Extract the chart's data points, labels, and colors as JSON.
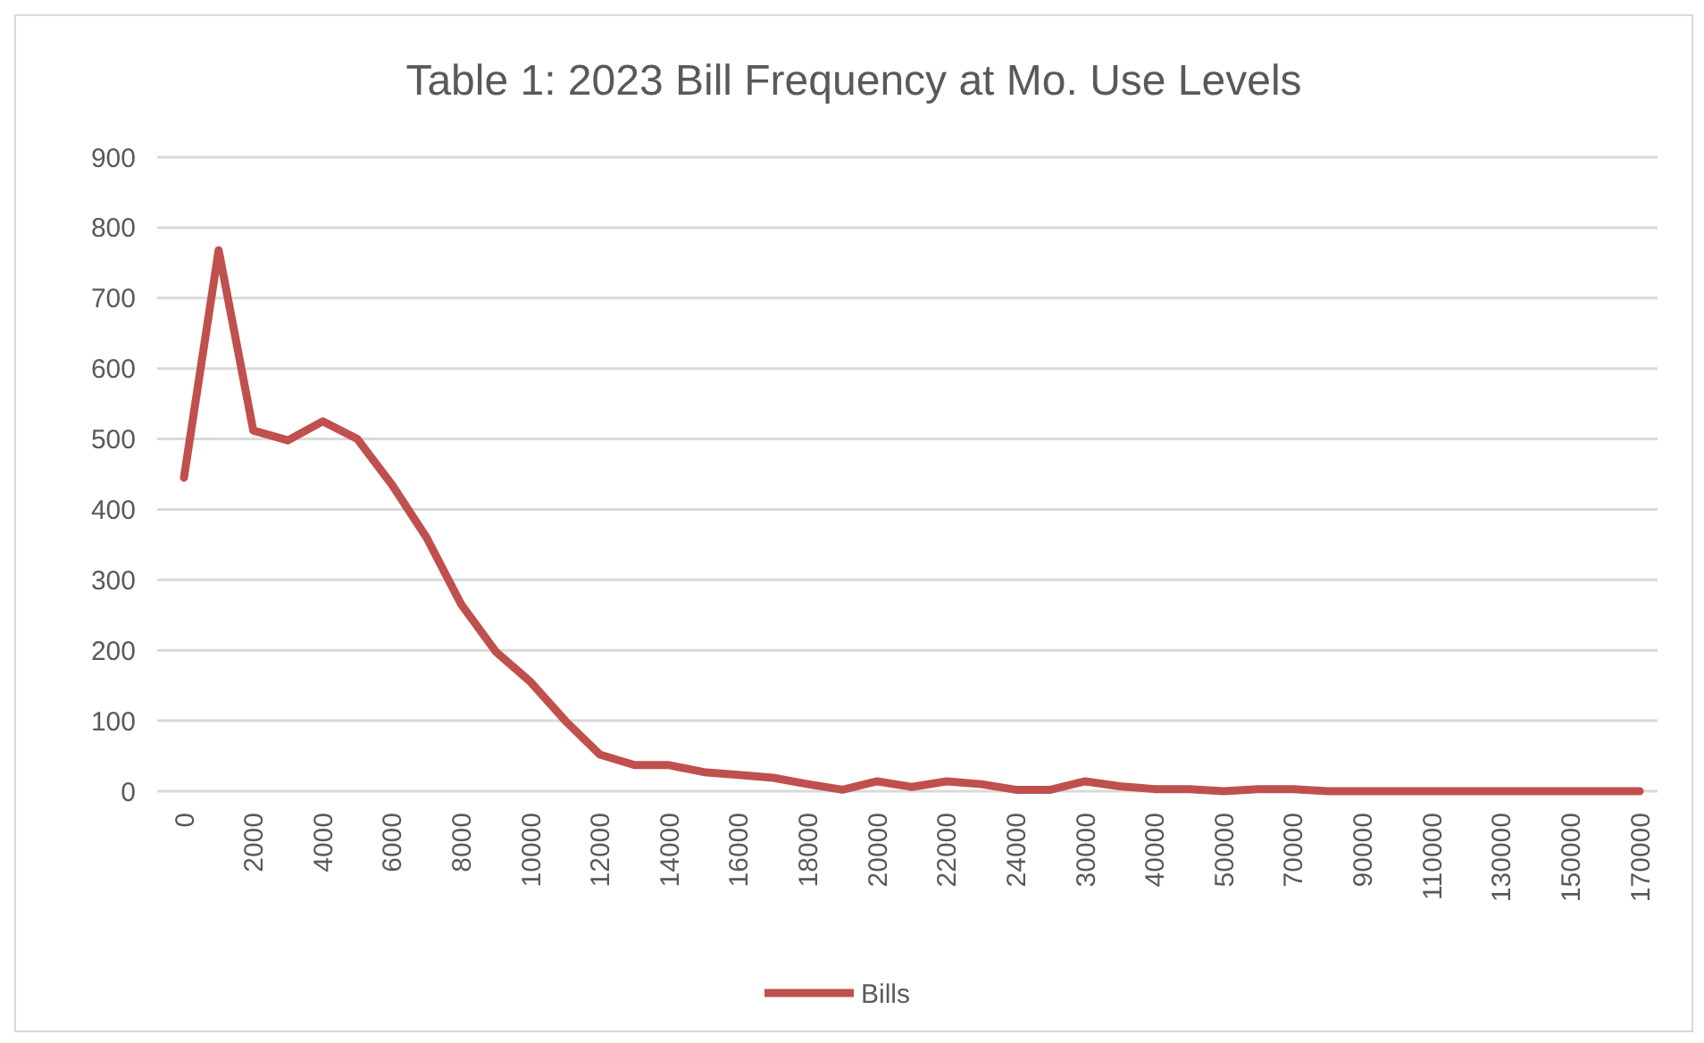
{
  "chart_data": {
    "type": "line",
    "title": "Table 1: 2023 Bill Frequency  at Mo. Use Levels",
    "categories": [
      "0",
      null,
      "2000",
      null,
      "4000",
      null,
      "6000",
      null,
      "8000",
      null,
      "10000",
      null,
      "12000",
      null,
      "14000",
      null,
      "16000",
      null,
      "18000",
      null,
      "20000",
      null,
      "22000",
      null,
      "24000",
      null,
      "30000",
      null,
      "40000",
      null,
      "50000",
      null,
      "70000",
      null,
      "90000",
      null,
      "110000",
      null,
      "130000",
      null,
      "150000",
      null,
      "170000"
    ],
    "series": [
      {
        "name": "Bills",
        "color": "#c0504d",
        "values": [
          445,
          768,
          512,
          498,
          525,
          500,
          435,
          360,
          265,
          198,
          155,
          100,
          52,
          37,
          37,
          27,
          23,
          19,
          10,
          2,
          14,
          6,
          14,
          10,
          2,
          2,
          14,
          7,
          3,
          3,
          0,
          3,
          3,
          0,
          0,
          0,
          0,
          0,
          0,
          0,
          0,
          0,
          0
        ]
      }
    ],
    "ylim": [
      0,
      900
    ],
    "yticks": [
      0,
      100,
      200,
      300,
      400,
      500,
      600,
      700,
      800,
      900
    ],
    "grid": "y",
    "legend": "bottom",
    "marker": "none",
    "line_style": "solid"
  }
}
